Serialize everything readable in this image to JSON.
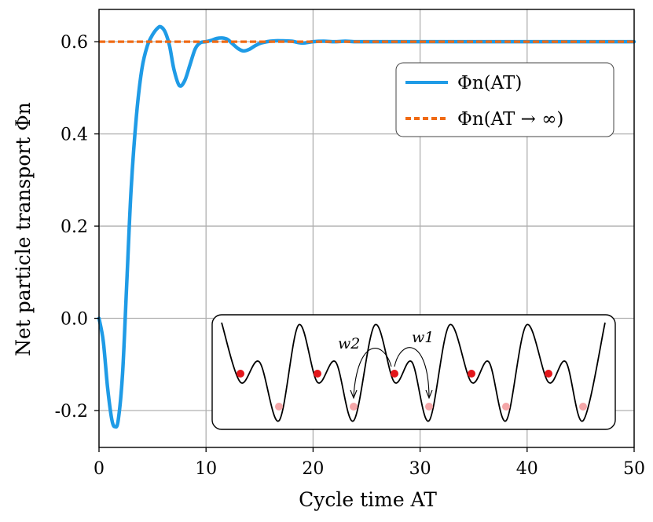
{
  "chart_data": {
    "type": "line",
    "xlabel": "Cycle time AT",
    "ylabel": "Net particle transport Φn",
    "xlim": [
      0,
      50
    ],
    "ylim": [
      -0.28,
      0.67
    ],
    "xticks": [
      0,
      10,
      20,
      30,
      40,
      50
    ],
    "xtick_labels": [
      "0",
      "10",
      "20",
      "30",
      "40",
      "50"
    ],
    "yticks": [
      -0.2,
      0.0,
      0.2,
      0.4,
      0.6
    ],
    "ytick_labels": [
      "-0.2",
      "0.0",
      "0.2",
      "0.4",
      "0.6"
    ],
    "grid": true,
    "legend_position": "upper-right",
    "series": [
      {
        "name": "Φn(AT)",
        "color": "#1f9be6",
        "style": "solid",
        "x": [
          0,
          0.4,
          0.8,
          1.2,
          1.5,
          1.8,
          2.2,
          2.6,
          3.0,
          3.5,
          4.0,
          4.5,
          5.0,
          5.5,
          5.8,
          6.2,
          6.6,
          7.0,
          7.5,
          8.0,
          8.5,
          9.0,
          9.5,
          10.0,
          10.5,
          11.0,
          11.5,
          12.0,
          12.5,
          13.0,
          13.5,
          14.0,
          14.5,
          15.0,
          15.5,
          16.0,
          16.5,
          17.0,
          18.0,
          19.0,
          20.0,
          21.0,
          22.0,
          23.0,
          24.0,
          25.0,
          27.0,
          30.0,
          35.0,
          40.0,
          45.0,
          50.0
        ],
        "y": [
          0.0,
          -0.05,
          -0.15,
          -0.22,
          -0.235,
          -0.22,
          -0.12,
          0.08,
          0.28,
          0.44,
          0.54,
          0.59,
          0.615,
          0.63,
          0.632,
          0.62,
          0.59,
          0.54,
          0.505,
          0.515,
          0.55,
          0.585,
          0.598,
          0.6,
          0.603,
          0.607,
          0.608,
          0.605,
          0.595,
          0.585,
          0.58,
          0.583,
          0.59,
          0.596,
          0.599,
          0.601,
          0.602,
          0.602,
          0.601,
          0.597,
          0.6,
          0.601,
          0.6,
          0.601,
          0.6,
          0.6,
          0.6,
          0.6,
          0.6,
          0.6,
          0.6,
          0.6
        ]
      },
      {
        "name": "Φn(AT → ∞)",
        "color": "#f06a14",
        "style": "dashed",
        "x": [
          0,
          50
        ],
        "y": [
          0.6,
          0.6
        ]
      }
    ],
    "inset": {
      "type": "diagram",
      "description_labels": [
        "w2",
        "w1"
      ]
    }
  }
}
